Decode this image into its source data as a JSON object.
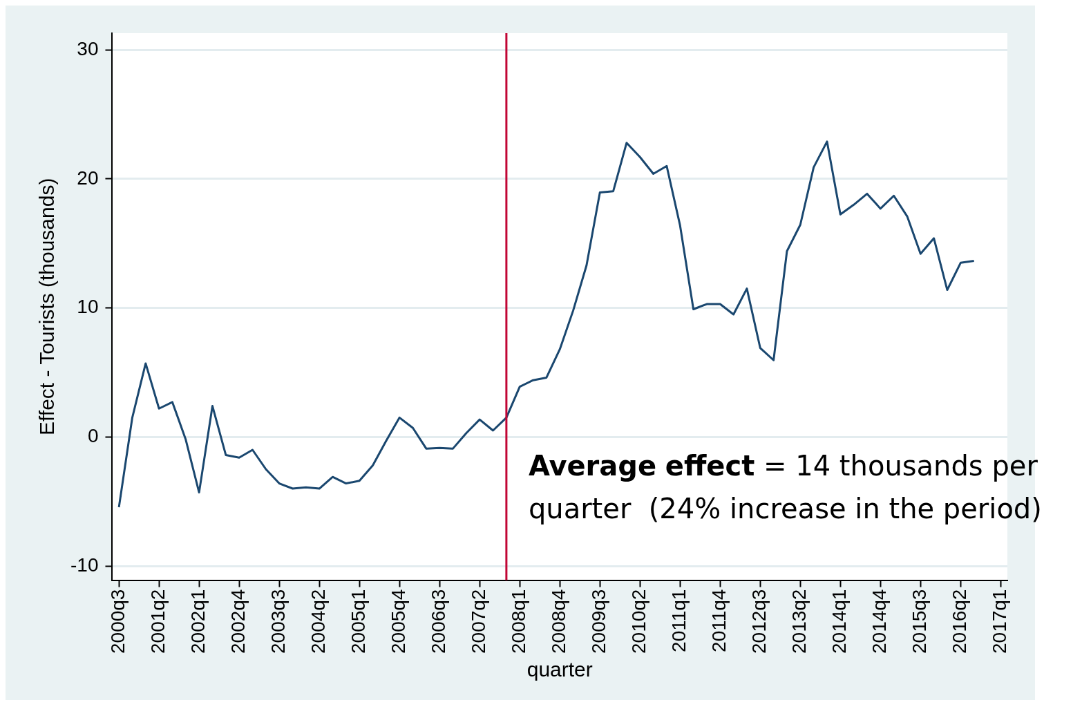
{
  "chart_data": {
    "type": "line",
    "xlabel": "quarter",
    "ylabel": "Effect - Tourists (thousands)",
    "categories": [
      "2000q3",
      null,
      null,
      "2001q2",
      null,
      null,
      "2002q1",
      null,
      null,
      "2002q4",
      null,
      null,
      "2003q3",
      null,
      null,
      "2004q2",
      null,
      null,
      "2005q1",
      null,
      null,
      "2005q4",
      null,
      null,
      "2006q3",
      null,
      null,
      "2007q2",
      null,
      null,
      "2008q1",
      null,
      null,
      "2008q4",
      null,
      null,
      "2009q3",
      null,
      null,
      "2010q2",
      null,
      null,
      "2011q1",
      null,
      null,
      "2011q4",
      null,
      null,
      "2012q3",
      null,
      null,
      "2013q2",
      null,
      null,
      "2014q1",
      null,
      null,
      "2014q4",
      null,
      null,
      "2015q3",
      null,
      null,
      "2016q2",
      null,
      null,
      "2017q1"
    ],
    "series": [
      {
        "color": "#1a476f",
        "values": [
          -5.45,
          1.5,
          5.7,
          2.2,
          2.7,
          -0.2,
          -4.3,
          2.4,
          -1.4,
          -1.6,
          -1.0,
          -2.5,
          -3.6,
          -4.0,
          -3.9,
          -4.0,
          -3.1,
          -3.6,
          -3.4,
          -2.2,
          -0.3,
          1.5,
          0.7,
          -0.9,
          -0.85,
          -0.9,
          0.3,
          1.35,
          0.5,
          1.5,
          3.9,
          4.4,
          4.6,
          6.8,
          9.8,
          13.3,
          18.95,
          19.05,
          22.8,
          21.7,
          20.4,
          21.0,
          16.4,
          9.9,
          10.3,
          10.3,
          9.5,
          11.5,
          6.9,
          5.95,
          14.4,
          16.45,
          20.9,
          22.9,
          17.25,
          18.0,
          18.85,
          17.7,
          18.7,
          17.1,
          14.2,
          15.4,
          11.4,
          13.5,
          13.65,
          null,
          null
        ]
      }
    ],
    "ylim": [
      -11.1,
      31.3
    ],
    "yticks": [
      -10,
      0,
      10,
      20,
      30
    ],
    "grid": "y",
    "legend": false,
    "marker": "none",
    "line_style": "solid",
    "annotations": [
      "Average effect = 14 thousands per quarter  (24% increase in the period)"
    ]
  }
}
